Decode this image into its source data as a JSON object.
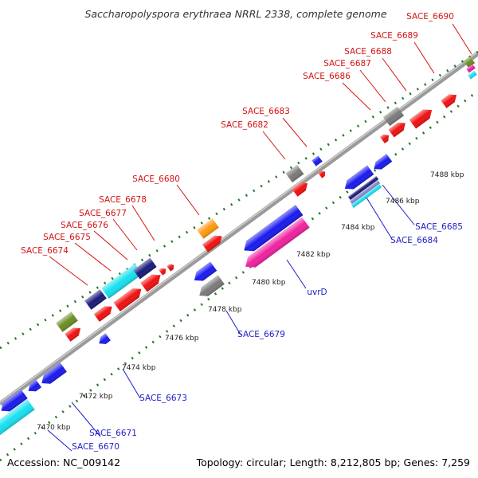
{
  "title": "Saccharopolyspora erythraea NRRL 2338, complete genome",
  "footer": {
    "accession": "Accession: NC_009142",
    "summary": "Topology: circular; Length: 8,212,805 bp; Genes: 7,259"
  },
  "scale_labels": [
    "7470 kbp",
    "7472 kbp",
    "7474 kbp",
    "7476 kbp",
    "7478 kbp",
    "7480 kbp",
    "7482 kbp",
    "7484 kbp",
    "7486 kbp",
    "7488 kbp"
  ],
  "forward_gene_labels": [
    "SACE_6674",
    "SACE_6675",
    "SACE_6676",
    "SACE_6677",
    "SACE_6678",
    "SACE_6680",
    "SACE_6682",
    "SACE_6683",
    "SACE_6686",
    "SACE_6687",
    "SACE_6688",
    "SACE_6689",
    "SACE_6690"
  ],
  "reverse_gene_labels": [
    "SACE_6670",
    "SACE_6671",
    "SACE_6673",
    "SACE_6679",
    "uvrD",
    "SACE_6684",
    "SACE_6685"
  ],
  "colors": {
    "forward_label": "#d21414",
    "reverse_label": "#1c1cc8",
    "backbone": "#9a9a9a",
    "dots": "#1f7a1f",
    "red": "#f01010",
    "blue": "#1a1aee",
    "navy": "#1a1a7a",
    "cyan": "#18e0f0",
    "gray": "#7a7a7a",
    "orange": "#ff9a10",
    "magenta": "#ee22a0",
    "olive": "#6a8e22"
  }
}
